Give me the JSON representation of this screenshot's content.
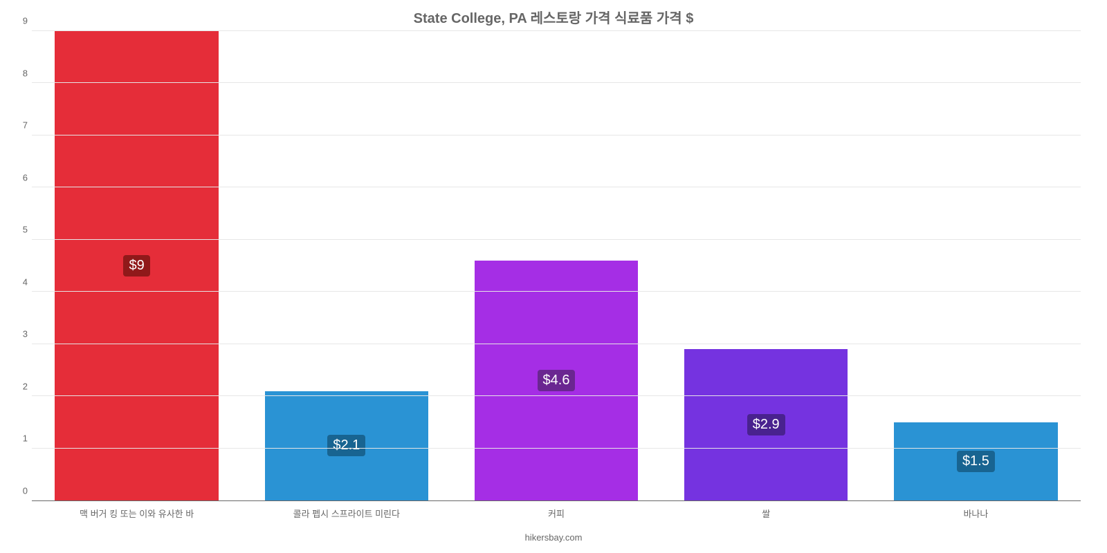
{
  "chart": {
    "type": "bar",
    "title": "State College, PA 레스토랑 가격 식료품 가격 $",
    "title_fontsize": 20,
    "title_color": "#666666",
    "attribution": "hikersbay.com",
    "attribution_color": "#666666",
    "background_color": "#ffffff",
    "grid_color": "#e6e6e6",
    "axis_color": "#666666",
    "category_label_color": "#666666",
    "category_label_fontsize": 13,
    "ytick_label_fontsize": 13,
    "ylim": [
      0,
      9
    ],
    "yticks": [
      0,
      1,
      2,
      3,
      4,
      5,
      6,
      7,
      8,
      9
    ],
    "bar_width_ratio": 0.78,
    "badge_fontsize": 20,
    "badge_text_color": "#ffffff",
    "badge_radius": 4,
    "categories": [
      "맥 버거 킹 또는 이와 유사한 바",
      "콜라 펩시 스프라이트 미린다",
      "커피",
      "쌀",
      "바나나"
    ],
    "values": [
      9.0,
      2.1,
      4.6,
      2.9,
      1.5
    ],
    "value_labels": [
      "$9",
      "$2.1",
      "$4.6",
      "$2.9",
      "$1.5"
    ],
    "bar_colors": [
      "#e52d39",
      "#2a93d4",
      "#a52ee5",
      "#7533e0",
      "#2a93d4"
    ],
    "badge_colors": [
      "#90191a",
      "#186491",
      "#6a2691",
      "#49228f",
      "#186491"
    ]
  }
}
